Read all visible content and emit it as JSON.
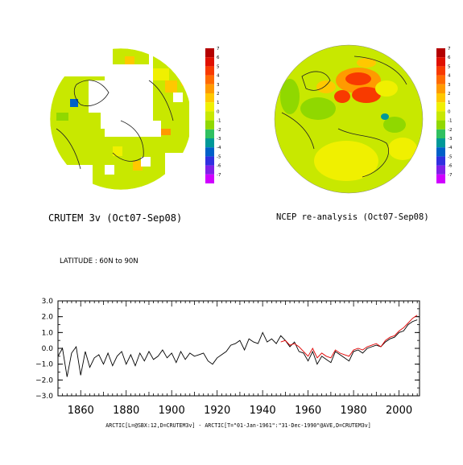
{
  "maps": [
    {
      "title": "CRUTEM 3v (Oct07-Sep08)",
      "colorbar_labels": [
        "7",
        "6",
        "5",
        "4",
        "3",
        "2",
        "1",
        "0",
        "-1",
        "-2",
        "-3",
        "-4",
        "-5",
        "-6",
        "-7"
      ]
    },
    {
      "title": "NCEP re-analysis (Oct07-Sep08)",
      "colorbar_labels": [
        "7",
        "6",
        "5",
        "4",
        "3",
        "2",
        "1",
        "0",
        "-1",
        "-2",
        "-3",
        "-4",
        "-5",
        "-6",
        "-7"
      ]
    }
  ],
  "colorbar_colors": [
    "#b40000",
    "#e01000",
    "#f83a00",
    "#ff6a00",
    "#ff9a00",
    "#ffc800",
    "#f0f000",
    "#c8e800",
    "#90d800",
    "#30c060",
    "#009898",
    "#0060c8",
    "#3030e0",
    "#8020e8",
    "#d000ff"
  ],
  "latitude_label": "LATITUDE : 60N to 90N",
  "chart_data": {
    "type": "line",
    "title": "",
    "xlabel": "ARCTIC[L=@SBX:12,D=CRUTEM3v] - ARCTIC[T=\"01-Jan-1961\":\"31-Dec-1990\"@AVE,D=CRUTEM3v]",
    "ylabel": "",
    "xlim": [
      1850,
      2009
    ],
    "ylim": [
      -3.0,
      3.0
    ],
    "x_ticks": [
      "1860",
      "1880",
      "1900",
      "1920",
      "1940",
      "1960",
      "1980",
      "2000"
    ],
    "y_ticks": [
      "3.0",
      "2.0",
      "1.0",
      "0.0",
      "−1.0",
      "−2.0",
      "−3.0"
    ],
    "grid": false,
    "colors": [
      "#000000",
      "#e00000"
    ],
    "series": [
      {
        "x": [
          1850,
          1852,
          1854,
          1856,
          1858,
          1860,
          1862,
          1864,
          1866,
          1868,
          1870,
          1872,
          1874,
          1876,
          1878,
          1880,
          1882,
          1884,
          1886,
          1888,
          1890,
          1892,
          1894,
          1896,
          1898,
          1900,
          1902,
          1904,
          1906,
          1908,
          1910,
          1912,
          1914,
          1916,
          1918,
          1920,
          1922,
          1924,
          1926,
          1928,
          1930,
          1932,
          1934,
          1936,
          1938,
          1940,
          1942,
          1944,
          1946,
          1948,
          1950,
          1952,
          1954,
          1956,
          1958,
          1960,
          1962,
          1964,
          1966,
          1968,
          1970,
          1972,
          1974,
          1976,
          1978,
          1980,
          1982,
          1984,
          1986,
          1988,
          1990,
          1992,
          1994,
          1996,
          1998,
          2000,
          2002,
          2004,
          2006,
          2008
        ],
        "values": [
          -0.5,
          0.0,
          -1.8,
          -0.3,
          0.1,
          -1.7,
          -0.2,
          -1.2,
          -0.6,
          -0.4,
          -1.0,
          -0.3,
          -1.1,
          -0.5,
          -0.2,
          -1.0,
          -0.4,
          -1.1,
          -0.3,
          -0.8,
          -0.2,
          -0.7,
          -0.5,
          -0.1,
          -0.6,
          -0.3,
          -0.9,
          -0.2,
          -0.7,
          -0.3,
          -0.5,
          -0.4,
          -0.3,
          -0.8,
          -1.0,
          -0.6,
          -0.4,
          -0.2,
          0.2,
          0.3,
          0.5,
          -0.1,
          0.6,
          0.4,
          0.3,
          1.0,
          0.4,
          0.6,
          0.3,
          0.8,
          0.5,
          0.1,
          0.4,
          -0.2,
          -0.3,
          -0.8,
          -0.2,
          -1.0,
          -0.5,
          -0.7,
          -0.9,
          -0.2,
          -0.4,
          -0.6,
          -0.8,
          -0.2,
          -0.1,
          -0.3,
          0.0,
          0.1,
          0.2,
          0.1,
          0.4,
          0.6,
          0.7,
          1.0,
          1.1,
          1.5,
          1.7,
          1.8
        ]
      },
      {
        "x": [
          1948,
          1950,
          1952,
          1954,
          1956,
          1958,
          1960,
          1962,
          1964,
          1966,
          1968,
          1970,
          1972,
          1974,
          1976,
          1978,
          1980,
          1982,
          1984,
          1986,
          1988,
          1990,
          1992,
          1994,
          1996,
          1998,
          2000,
          2002,
          2004,
          2006,
          2008
        ],
        "values": [
          0.4,
          0.5,
          0.2,
          0.3,
          0.1,
          -0.2,
          -0.5,
          0.0,
          -0.6,
          -0.3,
          -0.5,
          -0.6,
          -0.1,
          -0.3,
          -0.4,
          -0.5,
          -0.1,
          0.0,
          -0.1,
          0.1,
          0.2,
          0.3,
          0.1,
          0.5,
          0.7,
          0.8,
          1.1,
          1.3,
          1.6,
          1.9,
          2.1
        ]
      }
    ]
  }
}
